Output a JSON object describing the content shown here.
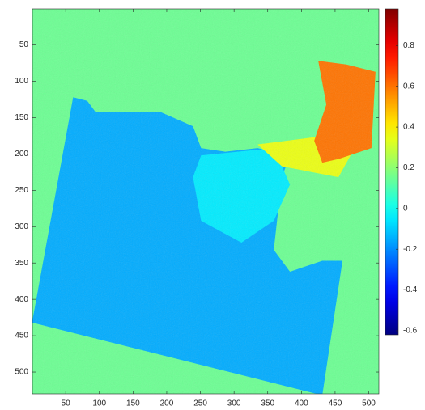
{
  "chart_data": {
    "type": "heatmap",
    "colormap": "jet",
    "xlim": [
      0.5,
      515
    ],
    "ylim": [
      0.5,
      530
    ],
    "y_reversed": true,
    "xticks": [
      50,
      100,
      150,
      200,
      250,
      300,
      350,
      400,
      450,
      500
    ],
    "yticks": [
      50,
      100,
      150,
      200,
      250,
      300,
      350,
      400,
      450,
      500
    ],
    "clim": [
      -0.62,
      0.98
    ],
    "cticks": [
      -0.6,
      -0.4,
      -0.2,
      0,
      0.2,
      0.4,
      0.6,
      0.8
    ],
    "background": 0.15,
    "regions": [
      {
        "value": -0.15,
        "points": [
          [
            61,
            122
          ],
          [
            0,
            432
          ],
          [
            431,
            532
          ],
          [
            461,
            347
          ],
          [
            431,
            347
          ],
          [
            383,
            362
          ],
          [
            359,
            332
          ],
          [
            365,
            282
          ],
          [
            347,
            252
          ],
          [
            371,
            232
          ],
          [
            383,
            202
          ],
          [
            335,
            192
          ],
          [
            287,
            197
          ],
          [
            251,
            192
          ],
          [
            239,
            162
          ],
          [
            190,
            142
          ],
          [
            130,
            142
          ],
          [
            94,
            142
          ],
          [
            82,
            127
          ]
        ]
      },
      {
        "value": -0.05,
        "points": [
          [
            251,
            202
          ],
          [
            359,
            192
          ],
          [
            383,
            242
          ],
          [
            359,
            292
          ],
          [
            311,
            322
          ],
          [
            251,
            292
          ],
          [
            239,
            232
          ]
        ]
      },
      {
        "value": 0.35,
        "points": [
          [
            335,
            187
          ],
          [
            419,
            177
          ],
          [
            479,
            192
          ],
          [
            455,
            232
          ],
          [
            371,
            217
          ]
        ]
      },
      {
        "value": 0.6,
        "points": [
          [
            425,
            72
          ],
          [
            467,
            77
          ],
          [
            510,
            87
          ],
          [
            504,
            192
          ],
          [
            455,
            207
          ],
          [
            431,
            212
          ],
          [
            419,
            182
          ],
          [
            437,
            132
          ]
        ]
      }
    ]
  }
}
